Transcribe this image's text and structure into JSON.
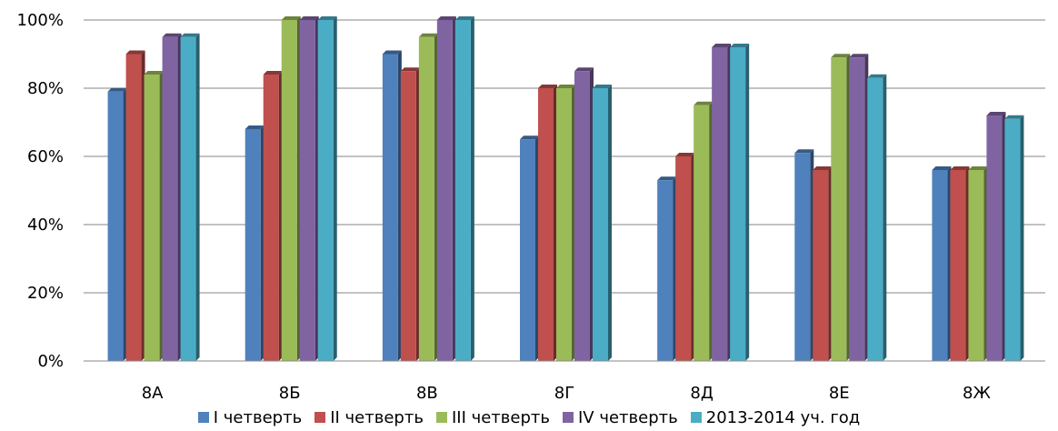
{
  "chart_data": {
    "type": "bar",
    "categories": [
      "8А",
      "8Б",
      "8В",
      "8Г",
      "8Д",
      "8Е",
      "8Ж"
    ],
    "series": [
      {
        "name": "I четверть",
        "color": "#4F81BD",
        "values": [
          79,
          68,
          90,
          65,
          53,
          61,
          56
        ]
      },
      {
        "name": "II четверть",
        "color": "#C0504D",
        "values": [
          90,
          84,
          85,
          80,
          60,
          56,
          56
        ]
      },
      {
        "name": "III четверть",
        "color": "#9BBB59",
        "values": [
          84,
          100,
          95,
          80,
          75,
          89,
          56
        ]
      },
      {
        "name": "IV четверть",
        "color": "#8064A2",
        "values": [
          95,
          100,
          100,
          85,
          92,
          89,
          72
        ]
      },
      {
        "name": "2013-2014 уч. год",
        "color": "#4BACC6",
        "values": [
          95,
          100,
          100,
          80,
          92,
          83,
          71
        ]
      }
    ],
    "yticks": [
      "0%",
      "20%",
      "40%",
      "60%",
      "80%",
      "100%"
    ],
    "ylim": [
      0,
      100
    ],
    "grid": true,
    "legend_position": "bottom",
    "style": "3d-clustered-bar"
  }
}
